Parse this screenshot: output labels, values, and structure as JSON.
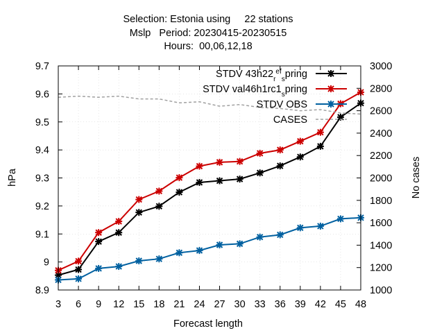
{
  "chart_data": {
    "type": "line",
    "title_lines": [
      "Selection: Estonia using     22 stations",
      "Mslp   Period: 20230415-20230515",
      "Hours:  00,06,12,18"
    ],
    "xlabel": "Forecast length",
    "ylabel": "hPa",
    "y2label": "No cases",
    "x": [
      3,
      6,
      9,
      12,
      15,
      18,
      21,
      24,
      27,
      30,
      33,
      36,
      39,
      42,
      45,
      48
    ],
    "xlim": [
      3,
      48
    ],
    "ylim": [
      8.9,
      9.7
    ],
    "y2lim": [
      1000,
      3000
    ],
    "yticks": [
      "8.9",
      "9",
      "9.1",
      "9.2",
      "9.3",
      "9.4",
      "9.5",
      "9.6",
      "9.7"
    ],
    "y2ticks": [
      "1000",
      "1200",
      "1400",
      "1600",
      "1800",
      "2000",
      "2200",
      "2400",
      "2600",
      "2800",
      "3000"
    ],
    "legend_position": "top-right",
    "series": [
      {
        "name": "STDV 43h22_ref_spring",
        "legend_parts": [
          {
            "text": "STDV 43h22",
            "shift": "none"
          },
          {
            "text": "r",
            "shift": "sub"
          },
          {
            "text": "ef",
            "shift": "super"
          },
          {
            "text": "s",
            "shift": "sub"
          },
          {
            "text": "pring",
            "shift": "none"
          }
        ],
        "color": "#000000",
        "axis": "y",
        "values": [
          8.953,
          8.973,
          9.073,
          9.105,
          9.177,
          9.199,
          9.249,
          9.284,
          9.29,
          9.296,
          9.318,
          9.343,
          9.375,
          9.413,
          9.517,
          9.567
        ]
      },
      {
        "name": "STDV val46h1rc1_spring",
        "legend_parts": [
          {
            "text": "STDV val46h1rc1",
            "shift": "none"
          },
          {
            "text": "s",
            "shift": "sub"
          },
          {
            "text": "pring",
            "shift": "none"
          }
        ],
        "color": "#cc0000",
        "axis": "y",
        "values": [
          8.97,
          9.003,
          9.105,
          9.145,
          9.223,
          9.253,
          9.301,
          9.342,
          9.356,
          9.359,
          9.388,
          9.4,
          9.431,
          9.463,
          9.565,
          9.606
        ]
      },
      {
        "name": "STDV OBS",
        "legend_parts": [
          {
            "text": "STDV OBS",
            "shift": "none"
          }
        ],
        "color": "#0060a0",
        "axis": "y",
        "values": [
          8.936,
          8.94,
          8.977,
          8.984,
          9.004,
          9.011,
          9.033,
          9.041,
          9.061,
          9.065,
          9.089,
          9.097,
          9.122,
          9.128,
          9.154,
          9.158
        ]
      },
      {
        "name": "CASES",
        "legend_parts": [
          {
            "text": "CASES",
            "shift": "none"
          }
        ],
        "color": "#a0a0a0",
        "axis": "y2",
        "dashed": true,
        "values": [
          2720,
          2730,
          2720,
          2730,
          2705,
          2705,
          2670,
          2680,
          2640,
          2655,
          2630,
          2620,
          2600,
          2610,
          2580,
          2570
        ]
      }
    ]
  }
}
